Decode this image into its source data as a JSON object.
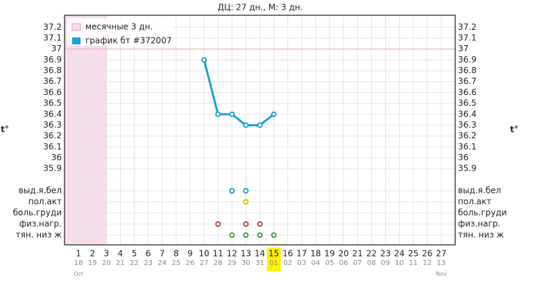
{
  "chart_data": {
    "type": "line",
    "title": "ДЦ: 27 дн., М: 3 дн.",
    "y_axis_label": "t°",
    "xlim": [
      0,
      28
    ],
    "xticks": [
      1,
      2,
      3,
      4,
      5,
      6,
      7,
      8,
      9,
      10,
      11,
      12,
      13,
      14,
      15,
      16,
      17,
      18,
      19,
      20,
      21,
      22,
      23,
      24,
      25,
      26,
      27
    ],
    "dates": [
      "18",
      "19",
      "20",
      "21",
      "22",
      "23",
      "24",
      "25",
      "26",
      "27",
      "28",
      "29",
      "30",
      "31",
      "01",
      "02",
      "03",
      "04",
      "05",
      "06",
      "07",
      "08",
      "09",
      "10",
      "11",
      "12",
      "13"
    ],
    "months": [
      {
        "value": 1,
        "label": "Oct"
      },
      {
        "value": 27,
        "label": "Nov"
      }
    ],
    "highlight_day": 15,
    "ylim": [
      35.2,
      37.31
    ],
    "yticks": [
      37.2,
      37.1,
      37,
      36.9,
      36.8,
      36.7,
      36.6,
      36.5,
      36.4,
      36.3,
      36.2,
      36.1,
      36,
      35.9
    ],
    "ref_line": {
      "value": 37,
      "color": "#f6bcbc"
    },
    "period": {
      "name": "месячные 3 дн.",
      "color": "#f9dcee",
      "span": [
        0,
        3
      ]
    },
    "series": [
      {
        "name": "график бт #372007",
        "color": "#1a9fd9",
        "x": [
          10,
          11,
          12,
          13,
          14,
          15
        ],
        "values": [
          36.9,
          36.4,
          36.4,
          36.3,
          36.3,
          36.4
        ]
      }
    ],
    "symptoms": [
      {
        "label": "выд.я.бел",
        "color": "#1a9fd9",
        "days": [
          12,
          13
        ]
      },
      {
        "label": "пол.акт",
        "color": "#c9c900",
        "days": [
          13
        ]
      },
      {
        "label": "боль.груди",
        "color": "#888888",
        "days": []
      },
      {
        "label": "физ.нагр.",
        "color": "#d03a3a",
        "days": [
          11,
          13,
          14
        ]
      },
      {
        "label": "тян. низ ж",
        "color": "#3aa43a",
        "days": [
          12,
          13,
          14,
          15
        ]
      }
    ]
  }
}
